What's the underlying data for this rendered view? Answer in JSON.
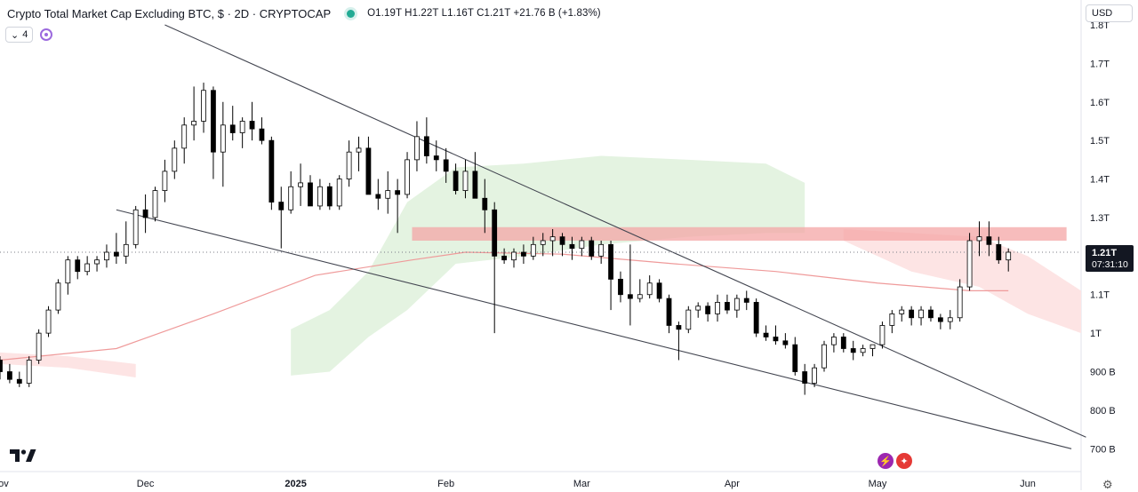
{
  "header": {
    "symbol": "Crypto Total Market Cap Excluding BTC, $ · 2D · CRYPTOCAP",
    "ohlc": "O1.19T H1.22T L1.16T C1.21T +21.76 B (+1.83%)"
  },
  "controls": {
    "indicator_count": "4",
    "currency": "USD"
  },
  "price_tag": {
    "value": "1.21T",
    "countdown": "07:31:10"
  },
  "icons": [
    "tradingview-logo",
    "flash-icon",
    "us-flag-icon",
    "settings-icon"
  ],
  "colors": {
    "up": "#ffffff",
    "down": "#000000",
    "trendline": "#434651",
    "ma": "#ef9a9a",
    "cloud_green": "#e4f3e1",
    "cloud_red": "#fde4e4",
    "zone": "#f4a6a6"
  },
  "chart_data": {
    "type": "candlestick",
    "title": "Crypto Total Market Cap Excluding BTC, $ · 2D · CRYPTOCAP",
    "ylim": [
      650,
      1800
    ],
    "y_unit": "B (USD)",
    "y_ticks": [
      {
        "value": 1800,
        "label": "1.8T"
      },
      {
        "value": 1700,
        "label": "1.7T"
      },
      {
        "value": 1600,
        "label": "1.6T"
      },
      {
        "value": 1500,
        "label": "1.5T"
      },
      {
        "value": 1400,
        "label": "1.4T"
      },
      {
        "value": 1300,
        "label": "1.3T"
      },
      {
        "value": 1100,
        "label": "1.1T"
      },
      {
        "value": 1000,
        "label": "1T"
      },
      {
        "value": 900,
        "label": "900 B"
      },
      {
        "value": 800,
        "label": "800 B"
      },
      {
        "value": 700,
        "label": "700 B"
      }
    ],
    "x_ticks": [
      {
        "date": "2024-11-01",
        "label": "Nov"
      },
      {
        "date": "2024-12-01",
        "label": "Dec"
      },
      {
        "date": "2025-01-01",
        "label": "2025"
      },
      {
        "date": "2025-02-01",
        "label": "Feb"
      },
      {
        "date": "2025-03-01",
        "label": "Mar"
      },
      {
        "date": "2025-04-01",
        "label": "Apr"
      },
      {
        "date": "2025-05-01",
        "label": "May"
      },
      {
        "date": "2025-06-01",
        "label": "Jun"
      }
    ],
    "x_range": [
      "2024-11-01",
      "2025-06-12"
    ],
    "current_price": 1210,
    "candles": [
      [
        "2024-11-01",
        930,
        940,
        880,
        900
      ],
      [
        "2024-11-03",
        900,
        920,
        870,
        880
      ],
      [
        "2024-11-05",
        880,
        900,
        860,
        870
      ],
      [
        "2024-11-07",
        870,
        940,
        860,
        930
      ],
      [
        "2024-11-09",
        930,
        1010,
        920,
        1000
      ],
      [
        "2024-11-11",
        1000,
        1070,
        990,
        1060
      ],
      [
        "2024-11-13",
        1060,
        1140,
        1050,
        1130
      ],
      [
        "2024-11-15",
        1130,
        1200,
        1100,
        1190
      ],
      [
        "2024-11-17",
        1190,
        1200,
        1140,
        1160
      ],
      [
        "2024-11-19",
        1160,
        1200,
        1150,
        1180
      ],
      [
        "2024-11-21",
        1180,
        1200,
        1160,
        1190
      ],
      [
        "2024-11-23",
        1190,
        1230,
        1170,
        1210
      ],
      [
        "2024-11-25",
        1210,
        1260,
        1180,
        1200
      ],
      [
        "2024-11-27",
        1200,
        1290,
        1180,
        1230
      ],
      [
        "2024-11-29",
        1230,
        1330,
        1220,
        1320
      ],
      [
        "2024-12-01",
        1320,
        1360,
        1260,
        1300
      ],
      [
        "2024-12-03",
        1300,
        1380,
        1290,
        1370
      ],
      [
        "2024-12-05",
        1370,
        1450,
        1340,
        1420
      ],
      [
        "2024-12-07",
        1420,
        1500,
        1400,
        1480
      ],
      [
        "2024-12-09",
        1480,
        1560,
        1440,
        1540
      ],
      [
        "2024-12-11",
        1540,
        1640,
        1500,
        1550
      ],
      [
        "2024-12-13",
        1550,
        1650,
        1520,
        1630
      ],
      [
        "2024-12-15",
        1630,
        1640,
        1400,
        1470
      ],
      [
        "2024-12-17",
        1470,
        1600,
        1380,
        1540
      ],
      [
        "2024-12-19",
        1540,
        1590,
        1500,
        1520
      ],
      [
        "2024-12-21",
        1520,
        1560,
        1480,
        1550
      ],
      [
        "2024-12-23",
        1550,
        1600,
        1500,
        1530
      ],
      [
        "2024-12-25",
        1530,
        1560,
        1490,
        1500
      ],
      [
        "2024-12-27",
        1500,
        1510,
        1320,
        1340
      ],
      [
        "2024-12-29",
        1340,
        1380,
        1220,
        1320
      ],
      [
        "2024-12-31",
        1320,
        1420,
        1310,
        1380
      ],
      [
        "2025-01-02",
        1380,
        1440,
        1330,
        1390
      ],
      [
        "2025-01-04",
        1390,
        1410,
        1340,
        1330
      ],
      [
        "2025-01-06",
        1330,
        1400,
        1320,
        1380
      ],
      [
        "2025-01-08",
        1380,
        1390,
        1320,
        1330
      ],
      [
        "2025-01-10",
        1330,
        1410,
        1320,
        1400
      ],
      [
        "2025-01-12",
        1400,
        1500,
        1380,
        1470
      ],
      [
        "2025-01-14",
        1470,
        1510,
        1420,
        1480
      ],
      [
        "2025-01-16",
        1480,
        1510,
        1360,
        1360
      ],
      [
        "2025-01-18",
        1360,
        1400,
        1320,
        1350
      ],
      [
        "2025-01-20",
        1350,
        1420,
        1310,
        1370
      ],
      [
        "2025-01-22",
        1370,
        1400,
        1260,
        1360
      ],
      [
        "2025-01-24",
        1360,
        1470,
        1350,
        1450
      ],
      [
        "2025-01-26",
        1450,
        1550,
        1420,
        1510
      ],
      [
        "2025-01-28",
        1510,
        1560,
        1440,
        1460
      ],
      [
        "2025-01-30",
        1460,
        1500,
        1420,
        1450
      ],
      [
        "2025-02-01",
        1450,
        1480,
        1390,
        1420
      ],
      [
        "2025-02-03",
        1420,
        1440,
        1360,
        1370
      ],
      [
        "2025-02-05",
        1370,
        1450,
        1350,
        1420
      ],
      [
        "2025-02-07",
        1420,
        1470,
        1350,
        1350
      ],
      [
        "2025-02-09",
        1350,
        1400,
        1260,
        1320
      ],
      [
        "2025-02-11",
        1320,
        1340,
        1000,
        1200
      ],
      [
        "2025-02-13",
        1200,
        1220,
        1180,
        1190
      ],
      [
        "2025-02-15",
        1190,
        1220,
        1170,
        1210
      ],
      [
        "2025-02-17",
        1210,
        1230,
        1180,
        1200
      ],
      [
        "2025-02-19",
        1200,
        1250,
        1190,
        1230
      ],
      [
        "2025-02-21",
        1230,
        1260,
        1200,
        1240
      ],
      [
        "2025-02-23",
        1240,
        1270,
        1200,
        1250
      ],
      [
        "2025-02-25",
        1250,
        1260,
        1200,
        1230
      ],
      [
        "2025-02-27",
        1230,
        1250,
        1190,
        1220
      ],
      [
        "2025-03-01",
        1220,
        1250,
        1200,
        1240
      ],
      [
        "2025-03-03",
        1240,
        1250,
        1190,
        1200
      ],
      [
        "2025-03-05",
        1200,
        1240,
        1180,
        1230
      ],
      [
        "2025-03-07",
        1230,
        1240,
        1060,
        1140
      ],
      [
        "2025-03-09",
        1140,
        1160,
        1080,
        1100
      ],
      [
        "2025-03-11",
        1100,
        1230,
        1020,
        1090
      ],
      [
        "2025-03-13",
        1090,
        1140,
        1080,
        1100
      ],
      [
        "2025-03-15",
        1100,
        1150,
        1090,
        1130
      ],
      [
        "2025-03-17",
        1130,
        1140,
        1080,
        1090
      ],
      [
        "2025-03-19",
        1090,
        1100,
        1000,
        1020
      ],
      [
        "2025-03-21",
        1020,
        1030,
        930,
        1010
      ],
      [
        "2025-03-23",
        1010,
        1070,
        1000,
        1060
      ],
      [
        "2025-03-25",
        1060,
        1080,
        1040,
        1070
      ],
      [
        "2025-03-27",
        1070,
        1080,
        1030,
        1050
      ],
      [
        "2025-03-29",
        1050,
        1100,
        1030,
        1080
      ],
      [
        "2025-03-31",
        1080,
        1100,
        1050,
        1060
      ],
      [
        "2025-04-02",
        1060,
        1100,
        1040,
        1090
      ],
      [
        "2025-04-04",
        1090,
        1110,
        1060,
        1080
      ],
      [
        "2025-04-06",
        1080,
        1090,
        990,
        1000
      ],
      [
        "2025-04-08",
        1000,
        1020,
        980,
        990
      ],
      [
        "2025-04-10",
        990,
        1020,
        970,
        980
      ],
      [
        "2025-04-12",
        980,
        1000,
        960,
        970
      ],
      [
        "2025-04-14",
        970,
        990,
        890,
        900
      ],
      [
        "2025-04-16",
        900,
        920,
        840,
        870
      ],
      [
        "2025-04-18",
        870,
        920,
        860,
        910
      ],
      [
        "2025-04-20",
        910,
        980,
        900,
        970
      ],
      [
        "2025-04-22",
        970,
        1000,
        950,
        990
      ],
      [
        "2025-04-24",
        990,
        1000,
        950,
        960
      ],
      [
        "2025-04-26",
        960,
        980,
        930,
        950
      ],
      [
        "2025-04-28",
        950,
        970,
        940,
        960
      ],
      [
        "2025-04-30",
        960,
        970,
        940,
        970
      ],
      [
        "2025-05-02",
        970,
        1030,
        960,
        1020
      ],
      [
        "2025-05-04",
        1020,
        1060,
        1000,
        1050
      ],
      [
        "2025-05-06",
        1050,
        1070,
        1030,
        1060
      ],
      [
        "2025-05-08",
        1060,
        1070,
        1020,
        1040
      ],
      [
        "2025-05-10",
        1040,
        1070,
        1020,
        1060
      ],
      [
        "2025-05-12",
        1060,
        1070,
        1030,
        1040
      ],
      [
        "2025-05-14",
        1040,
        1050,
        1010,
        1030
      ],
      [
        "2025-05-16",
        1030,
        1060,
        1010,
        1040
      ],
      [
        "2025-05-18",
        1040,
        1140,
        1030,
        1120
      ],
      [
        "2025-05-20",
        1120,
        1260,
        1110,
        1240
      ],
      [
        "2025-05-22",
        1240,
        1290,
        1200,
        1250
      ],
      [
        "2025-05-24",
        1250,
        1290,
        1200,
        1230
      ],
      [
        "2025-05-26",
        1230,
        1250,
        1180,
        1190
      ],
      [
        "2025-05-28",
        1190,
        1220,
        1160,
        1210
      ]
    ],
    "ma_series": [
      [
        "2024-11-01",
        930
      ],
      [
        "2024-11-25",
        960
      ],
      [
        "2024-12-15",
        1050
      ],
      [
        "2025-01-05",
        1150
      ],
      [
        "2025-01-25",
        1190
      ],
      [
        "2025-02-05",
        1210
      ],
      [
        "2025-02-25",
        1205
      ],
      [
        "2025-03-20",
        1180
      ],
      [
        "2025-04-10",
        1160
      ],
      [
        "2025-05-01",
        1130
      ],
      [
        "2025-05-20",
        1110
      ],
      [
        "2025-05-28",
        1110
      ]
    ],
    "cloud_green": [
      [
        "2024-12-31",
        890,
        1010
      ],
      [
        "2025-01-08",
        900,
        1060
      ],
      [
        "2025-01-16",
        990,
        1160
      ],
      [
        "2025-01-24",
        1060,
        1340
      ],
      [
        "2025-02-03",
        1180,
        1430
      ],
      [
        "2025-02-17",
        1200,
        1440
      ],
      [
        "2025-03-05",
        1230,
        1460
      ],
      [
        "2025-03-23",
        1250,
        1450
      ],
      [
        "2025-04-08",
        1260,
        1440
      ],
      [
        "2025-04-16",
        1260,
        1390
      ]
    ],
    "cloud_red": [
      [
        "2024-11-01",
        920,
        950
      ],
      [
        "2024-11-15",
        910,
        940
      ],
      [
        "2024-11-29",
        885,
        920
      ],
      [
        "2025-04-24",
        1240,
        1270
      ],
      [
        "2025-05-08",
        1160,
        1260
      ],
      [
        "2025-05-22",
        1120,
        1250
      ],
      [
        "2025-06-01",
        1050,
        1200
      ],
      [
        "2025-06-12",
        1000,
        1110
      ]
    ],
    "trendlines": [
      {
        "name": "upper",
        "points": [
          [
            "2024-12-05",
            1800
          ],
          [
            "2025-06-13",
            730
          ]
        ]
      },
      {
        "name": "lower",
        "points": [
          [
            "2024-11-25",
            1320
          ],
          [
            "2025-06-10",
            700
          ]
        ]
      }
    ],
    "resistance_zone": {
      "from": "2025-01-25",
      "to": "2025-06-09",
      "low": 1240,
      "high": 1275
    }
  }
}
